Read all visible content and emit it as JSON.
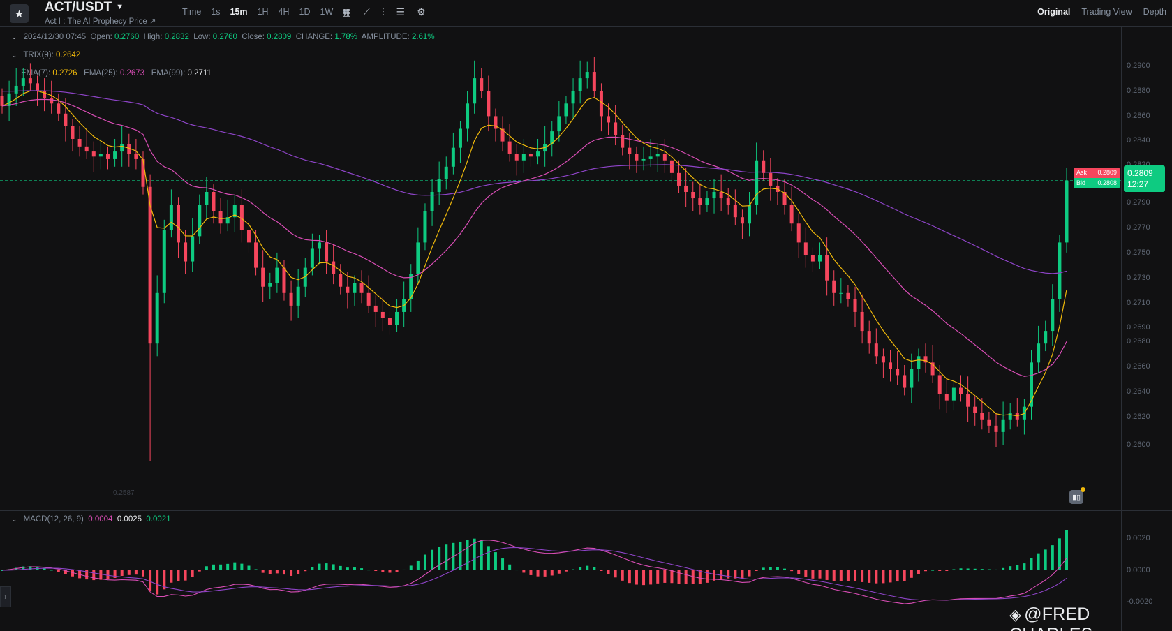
{
  "header": {
    "pair": "ACT/USDT",
    "subtitle": "Act I : The AI Prophecy Price ↗",
    "intervals": [
      {
        "label": "Time",
        "active": false
      },
      {
        "label": "1s",
        "active": false
      },
      {
        "label": "15m",
        "active": true
      },
      {
        "label": "1H",
        "active": false
      },
      {
        "label": "4H",
        "active": false
      },
      {
        "label": "1D",
        "active": false
      },
      {
        "label": "1W",
        "active": false
      }
    ],
    "tools": [
      "calendar-icon",
      "line-tool-icon",
      "indicator-icon",
      "layout-icon",
      "gear-icon"
    ],
    "views": [
      {
        "label": "Original",
        "active": true
      },
      {
        "label": "Trading View",
        "active": false
      },
      {
        "label": "Depth",
        "active": false
      }
    ]
  },
  "ohlc": {
    "datetime": "2024/12/30 07:45",
    "open_label": "Open:",
    "open": "0.2760",
    "high_label": "High:",
    "high": "0.2832",
    "low_label": "Low:",
    "low": "0.2760",
    "close_label": "Close:",
    "close": "0.2809",
    "change_label": "CHANGE:",
    "change": "1.78%",
    "amplitude_label": "AMPLITUDE:",
    "amplitude": "2.61%"
  },
  "trix": {
    "label": "TRIX(9):",
    "value": "0.2642"
  },
  "ema": {
    "ema7_label": "EMA(7):",
    "ema7": "0.2726",
    "ema25_label": "EMA(25):",
    "ema25": "0.2673",
    "ema99_label": "EMA(99):",
    "ema99": "0.2711"
  },
  "price_axis": [
    "0.2900",
    "0.2880",
    "0.2860",
    "0.2840",
    "0.2820",
    "0.2790",
    "0.2770",
    "0.2750",
    "0.2730",
    "0.2710",
    "0.2690",
    "0.2680",
    "0.2660",
    "0.2640",
    "0.2620",
    "0.2600"
  ],
  "current": {
    "price": "0.2809",
    "countdown": "12:27"
  },
  "orderbook": {
    "ask_label": "Ask",
    "ask": "0.2809",
    "bid_label": "Bid",
    "bid": "0.2808"
  },
  "low_marker": "0.2587",
  "macd": {
    "label": "MACD(12, 26, 9)",
    "dif": "0.0004",
    "dea": "0.0025",
    "hist": "0.0021",
    "axis": [
      "0.0020",
      "0.0000",
      "-0.0020"
    ]
  },
  "watermark": "@FRED CHARLES",
  "colors": {
    "up": "#0ecb81",
    "down": "#f6465d",
    "ema7": "#f0b90b",
    "ema25": "#d94db5",
    "ema99": "#8e44c8",
    "macd_dif": "#d94db5",
    "macd_dea": "#8e44c8"
  },
  "chart_data": {
    "type": "candlestick",
    "close_series": [
      0.2868,
      0.2878,
      0.2884,
      0.289,
      0.2886,
      0.288,
      0.2874,
      0.287,
      0.2862,
      0.2852,
      0.2842,
      0.2836,
      0.2832,
      0.2828,
      0.283,
      0.2826,
      0.2832,
      0.2838,
      0.283,
      0.2826,
      0.2804,
      0.268,
      0.272,
      0.277,
      0.279,
      0.276,
      0.2745,
      0.2765,
      0.279,
      0.28,
      0.2785,
      0.2775,
      0.278,
      0.279,
      0.277,
      0.276,
      0.274,
      0.2725,
      0.2728,
      0.274,
      0.272,
      0.271,
      0.2725,
      0.274,
      0.2755,
      0.276,
      0.2745,
      0.2735,
      0.2725,
      0.272,
      0.2728,
      0.272,
      0.271,
      0.2705,
      0.27,
      0.2695,
      0.2705,
      0.2715,
      0.2735,
      0.276,
      0.2785,
      0.28,
      0.281,
      0.282,
      0.2835,
      0.285,
      0.287,
      0.289,
      0.288,
      0.286,
      0.285,
      0.284,
      0.283,
      0.2825,
      0.283,
      0.2828,
      0.2832,
      0.2838,
      0.2848,
      0.286,
      0.287,
      0.288,
      0.289,
      0.2895,
      0.288,
      0.286,
      0.2855,
      0.2845,
      0.2835,
      0.283,
      0.2825,
      0.2826,
      0.2828,
      0.283,
      0.2825,
      0.2815,
      0.2805,
      0.28,
      0.2795,
      0.279,
      0.2795,
      0.28,
      0.2795,
      0.279,
      0.278,
      0.2775,
      0.279,
      0.2825,
      0.2815,
      0.2805,
      0.28,
      0.279,
      0.2775,
      0.276,
      0.275,
      0.2745,
      0.275,
      0.273,
      0.272,
      0.272,
      0.2715,
      0.2705,
      0.269,
      0.268,
      0.267,
      0.2665,
      0.266,
      0.2655,
      0.2645,
      0.266,
      0.267,
      0.2665,
      0.2655,
      0.264,
      0.2635,
      0.2645,
      0.264,
      0.263,
      0.2625,
      0.262,
      0.2615,
      0.261,
      0.262,
      0.2625,
      0.262,
      0.263,
      0.2665,
      0.268,
      0.269,
      0.2715,
      0.276,
      0.2809
    ]
  }
}
